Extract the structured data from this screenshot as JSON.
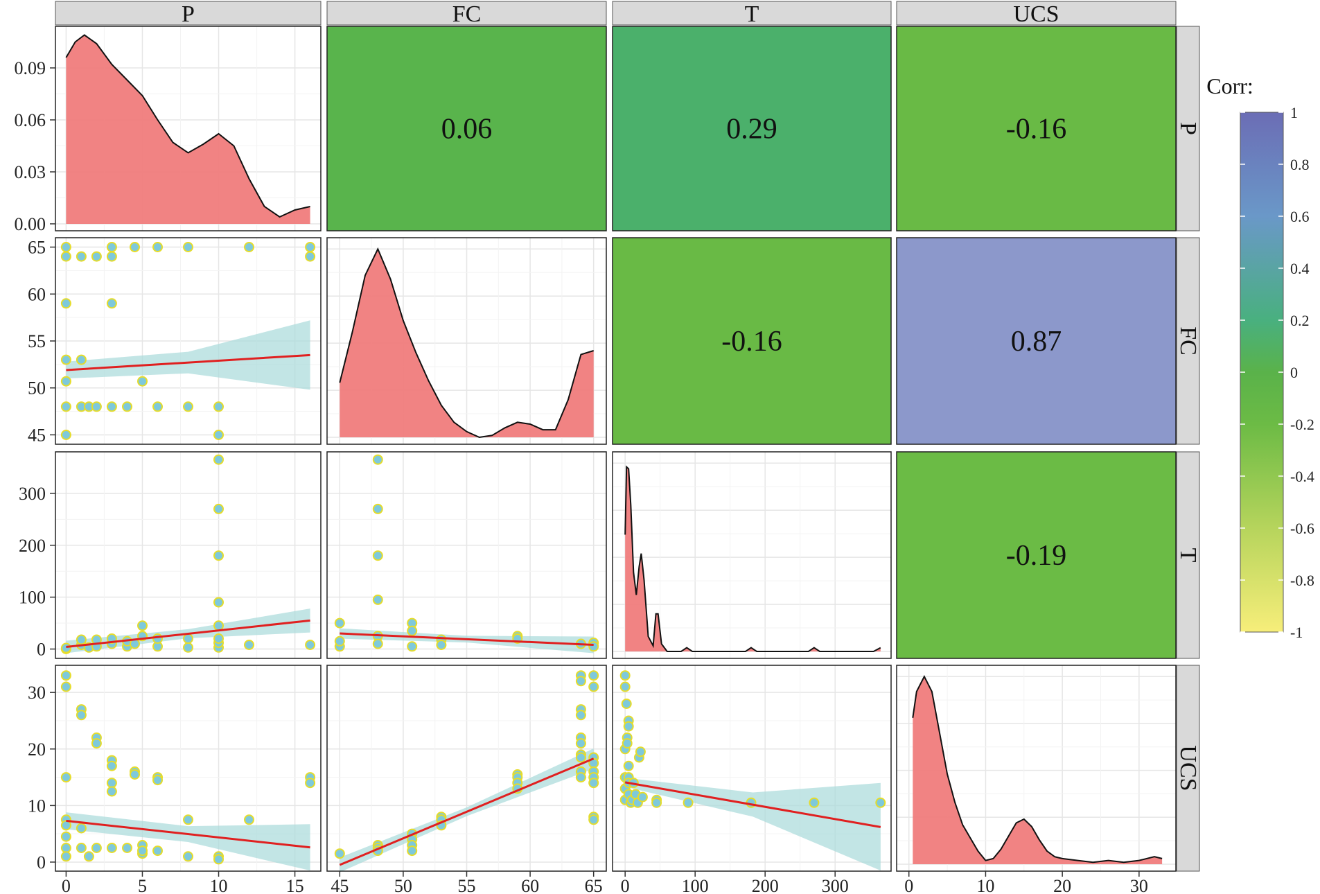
{
  "chart_data": {
    "type": "pairs",
    "variables": [
      "P",
      "FC",
      "T",
      "UCS"
    ],
    "strip_labels": {
      "top": [
        "P",
        "FC",
        "T",
        "UCS"
      ],
      "right": [
        "P",
        "FC",
        "T",
        "UCS"
      ]
    },
    "correlations": {
      "P_FC": "0.06",
      "P_T": "0.29",
      "P_UCS": "-0.16",
      "FC_T": "-0.16",
      "FC_UCS": "0.87",
      "T_UCS": "-0.19"
    },
    "legend": {
      "title": "Corr:",
      "ticks": [
        "1",
        "0.8",
        "0.6",
        "0.4",
        "0.2",
        "0",
        "-0.2",
        "-0.4",
        "-0.6",
        "-0.8",
        "-1"
      ]
    },
    "axes": {
      "P": {
        "range": [
          -0.7,
          16.7
        ],
        "ticks": [
          0,
          5,
          10,
          15
        ],
        "labels": [
          "0",
          "5",
          "10",
          "15"
        ]
      },
      "FC": {
        "range": [
          44.0,
          66.0
        ],
        "ticks": [
          45,
          50,
          55,
          60,
          65
        ],
        "labels": [
          "45",
          "50",
          "55",
          "60",
          "65"
        ]
      },
      "T": {
        "range": [
          -18,
          380
        ],
        "ticks": [
          0,
          100,
          200,
          300
        ],
        "labels": [
          "0",
          "100",
          "200",
          "300"
        ]
      },
      "UCS": {
        "range": [
          -1.6,
          34.8
        ],
        "ticks": [
          0,
          10,
          20,
          30
        ],
        "labels": [
          "0",
          "10",
          "20",
          "30"
        ]
      },
      "P_density": {
        "range": [
          -0.004,
          0.114
        ],
        "ticks": [
          0.0,
          0.03,
          0.06,
          0.09
        ],
        "labels": [
          "0.00",
          "0.03",
          "0.06",
          "0.09"
        ]
      }
    },
    "densities": {
      "P": [
        [
          0,
          0.096
        ],
        [
          0.6,
          0.105
        ],
        [
          1.2,
          0.109
        ],
        [
          2,
          0.104
        ],
        [
          3,
          0.092
        ],
        [
          4,
          0.083
        ],
        [
          5,
          0.074
        ],
        [
          6,
          0.06
        ],
        [
          7,
          0.047
        ],
        [
          8,
          0.041
        ],
        [
          9,
          0.046
        ],
        [
          10,
          0.052
        ],
        [
          11,
          0.045
        ],
        [
          12,
          0.026
        ],
        [
          13,
          0.01
        ],
        [
          14,
          0.004
        ],
        [
          15,
          0.008
        ],
        [
          16,
          0.01
        ],
        [
          16,
          0
        ]
      ],
      "FC": [
        [
          45,
          0.29
        ],
        [
          46,
          0.56
        ],
        [
          47,
          0.86
        ],
        [
          48,
          1.0
        ],
        [
          49,
          0.84
        ],
        [
          50,
          0.62
        ],
        [
          51,
          0.45
        ],
        [
          52,
          0.3
        ],
        [
          53,
          0.17
        ],
        [
          54,
          0.08
        ],
        [
          55,
          0.03
        ],
        [
          56,
          0.0
        ],
        [
          57,
          0.01
        ],
        [
          58,
          0.05
        ],
        [
          59,
          0.08
        ],
        [
          60,
          0.07
        ],
        [
          61,
          0.04
        ],
        [
          62,
          0.04
        ],
        [
          63,
          0.2
        ],
        [
          64,
          0.44
        ],
        [
          65,
          0.46
        ],
        [
          65,
          0
        ]
      ],
      "T": [
        [
          0,
          0.62
        ],
        [
          2,
          0.98
        ],
        [
          5,
          0.97
        ],
        [
          8,
          0.78
        ],
        [
          12,
          0.42
        ],
        [
          16,
          0.3
        ],
        [
          20,
          0.45
        ],
        [
          23,
          0.52
        ],
        [
          27,
          0.38
        ],
        [
          33,
          0.08
        ],
        [
          40,
          0.03
        ],
        [
          44,
          0.2
        ],
        [
          47,
          0.2
        ],
        [
          52,
          0.04
        ],
        [
          60,
          0.0
        ],
        [
          80,
          0.0
        ],
        [
          88,
          0.02
        ],
        [
          96,
          0.0
        ],
        [
          172,
          0.0
        ],
        [
          180,
          0.02
        ],
        [
          188,
          0.0
        ],
        [
          262,
          0.0
        ],
        [
          270,
          0.02
        ],
        [
          278,
          0.0
        ],
        [
          355,
          0.0
        ],
        [
          365,
          0.02
        ],
        [
          365,
          0
        ]
      ],
      "UCS": [
        [
          0.5,
          0.78
        ],
        [
          1,
          0.92
        ],
        [
          2,
          1.0
        ],
        [
          3,
          0.92
        ],
        [
          4,
          0.7
        ],
        [
          5,
          0.48
        ],
        [
          6,
          0.33
        ],
        [
          7,
          0.21
        ],
        [
          8,
          0.14
        ],
        [
          9,
          0.07
        ],
        [
          10,
          0.02
        ],
        [
          11,
          0.03
        ],
        [
          12,
          0.08
        ],
        [
          13,
          0.15
        ],
        [
          14,
          0.22
        ],
        [
          15,
          0.24
        ],
        [
          16,
          0.2
        ],
        [
          17,
          0.13
        ],
        [
          18,
          0.07
        ],
        [
          19,
          0.04
        ],
        [
          20,
          0.03
        ],
        [
          22,
          0.02
        ],
        [
          24,
          0.01
        ],
        [
          26,
          0.02
        ],
        [
          28,
          0.01
        ],
        [
          30,
          0.02
        ],
        [
          32,
          0.04
        ],
        [
          33,
          0.03
        ],
        [
          33,
          0
        ]
      ]
    },
    "scatter": {
      "P_FC": [
        [
          0,
          65
        ],
        [
          0,
          64
        ],
        [
          0,
          59
        ],
        [
          0,
          53
        ],
        [
          0,
          50.7
        ],
        [
          0,
          48
        ],
        [
          0,
          45
        ],
        [
          1,
          64
        ],
        [
          1,
          53
        ],
        [
          1,
          48
        ],
        [
          1.5,
          48
        ],
        [
          2,
          64
        ],
        [
          2,
          48
        ],
        [
          3,
          65
        ],
        [
          3,
          64
        ],
        [
          3,
          59
        ],
        [
          3,
          48
        ],
        [
          4,
          48
        ],
        [
          4.5,
          65
        ],
        [
          5,
          50.7
        ],
        [
          6,
          65
        ],
        [
          6,
          48
        ],
        [
          8,
          65
        ],
        [
          8,
          48
        ],
        [
          10,
          48
        ],
        [
          10,
          45
        ],
        [
          12,
          65
        ],
        [
          16,
          65
        ],
        [
          16,
          64
        ]
      ],
      "P_T": [
        [
          0,
          0
        ],
        [
          0,
          2
        ],
        [
          1,
          8
        ],
        [
          1,
          18
        ],
        [
          1.5,
          3
        ],
        [
          2,
          5
        ],
        [
          2,
          18
        ],
        [
          3,
          10
        ],
        [
          3,
          20
        ],
        [
          4,
          5
        ],
        [
          4,
          15
        ],
        [
          4.5,
          10
        ],
        [
          5,
          25
        ],
        [
          5,
          45
        ],
        [
          6,
          5
        ],
        [
          6,
          20
        ],
        [
          8,
          3
        ],
        [
          8,
          20
        ],
        [
          10,
          3
        ],
        [
          10,
          12
        ],
        [
          10,
          20
        ],
        [
          10,
          45
        ],
        [
          10,
          90
        ],
        [
          10,
          180
        ],
        [
          10,
          270
        ],
        [
          10,
          365
        ],
        [
          12,
          8
        ],
        [
          16,
          8
        ]
      ],
      "P_UCS": [
        [
          0,
          33
        ],
        [
          0,
          31
        ],
        [
          0,
          15
        ],
        [
          0,
          7.5
        ],
        [
          0,
          6.5
        ],
        [
          0,
          4.5
        ],
        [
          0,
          2.5
        ],
        [
          0,
          1
        ],
        [
          1,
          27
        ],
        [
          1,
          26
        ],
        [
          1,
          6
        ],
        [
          1,
          2.5
        ],
        [
          1.5,
          1
        ],
        [
          2,
          22
        ],
        [
          2,
          21
        ],
        [
          2,
          2.5
        ],
        [
          3,
          18
        ],
        [
          3,
          17
        ],
        [
          3,
          14
        ],
        [
          3,
          12.5
        ],
        [
          3,
          2.5
        ],
        [
          4,
          2.5
        ],
        [
          4.5,
          16
        ],
        [
          4.5,
          15.5
        ],
        [
          5,
          3
        ],
        [
          5,
          1.5
        ],
        [
          5,
          2
        ],
        [
          6,
          15
        ],
        [
          6,
          14.5
        ],
        [
          6,
          2
        ],
        [
          8,
          7.5
        ],
        [
          8,
          1
        ],
        [
          10,
          1
        ],
        [
          10,
          0.5
        ],
        [
          12,
          7.5
        ],
        [
          16,
          15
        ],
        [
          16,
          14
        ]
      ],
      "FC_T": [
        [
          45,
          50
        ],
        [
          45,
          5
        ],
        [
          45,
          15
        ],
        [
          48,
          365
        ],
        [
          48,
          270
        ],
        [
          48,
          180
        ],
        [
          48,
          95
        ],
        [
          48,
          25
        ],
        [
          48,
          10
        ],
        [
          50.7,
          50
        ],
        [
          50.7,
          35
        ],
        [
          50.7,
          5
        ],
        [
          53,
          18
        ],
        [
          53,
          8
        ],
        [
          59,
          25
        ],
        [
          59,
          20
        ],
        [
          64,
          10
        ],
        [
          65,
          12
        ],
        [
          65,
          5
        ]
      ],
      "FC_UCS": [
        [
          45,
          1.5
        ],
        [
          48,
          3
        ],
        [
          48,
          2.5
        ],
        [
          48,
          2
        ],
        [
          50.7,
          5
        ],
        [
          50.7,
          4
        ],
        [
          50.7,
          3
        ],
        [
          50.7,
          2
        ],
        [
          53,
          8
        ],
        [
          53,
          7.5
        ],
        [
          53,
          6.5
        ],
        [
          59,
          15.5
        ],
        [
          59,
          15
        ],
        [
          59,
          14
        ],
        [
          59,
          13
        ],
        [
          64,
          33
        ],
        [
          64,
          32
        ],
        [
          64,
          27
        ],
        [
          64,
          26
        ],
        [
          64,
          22
        ],
        [
          64,
          21
        ],
        [
          64,
          19
        ],
        [
          64,
          18.5
        ],
        [
          64,
          16
        ],
        [
          64,
          15
        ],
        [
          65,
          33
        ],
        [
          65,
          31
        ],
        [
          65,
          18.5
        ],
        [
          65,
          17.5
        ],
        [
          65,
          16
        ],
        [
          65,
          15
        ],
        [
          65,
          14
        ],
        [
          65,
          8
        ],
        [
          65,
          7.5
        ]
      ],
      "T_UCS": [
        [
          0,
          33
        ],
        [
          0,
          31
        ],
        [
          0,
          20
        ],
        [
          0,
          15
        ],
        [
          0,
          13
        ],
        [
          0,
          11
        ],
        [
          2,
          28
        ],
        [
          3,
          22
        ],
        [
          3,
          21
        ],
        [
          5,
          25
        ],
        [
          5,
          24
        ],
        [
          5,
          17
        ],
        [
          5,
          15
        ],
        [
          5,
          14
        ],
        [
          5,
          12
        ],
        [
          8,
          10.5
        ],
        [
          10,
          11
        ],
        [
          12,
          14
        ],
        [
          15,
          12
        ],
        [
          18,
          10.5
        ],
        [
          20,
          18.5
        ],
        [
          22,
          19.5
        ],
        [
          25,
          11.5
        ],
        [
          45,
          11
        ],
        [
          45,
          10.5
        ],
        [
          90,
          10.5
        ],
        [
          180,
          10.5
        ],
        [
          270,
          10.5
        ],
        [
          365,
          10.5
        ]
      ]
    },
    "regressions": {
      "P_FC": {
        "x": [
          0,
          16
        ],
        "y": [
          51.9,
          53.5
        ],
        "band_lo": [
          51.0,
          49.8
        ],
        "band_hi": [
          52.8,
          57.2
        ]
      },
      "P_T": {
        "x": [
          0,
          16
        ],
        "y": [
          4,
          55
        ],
        "band_lo": [
          -8,
          32
        ],
        "band_hi": [
          16,
          78
        ]
      },
      "P_UCS": {
        "x": [
          0,
          16
        ],
        "y": [
          7.3,
          2.6
        ],
        "band_lo": [
          5.8,
          -1.5
        ],
        "band_hi": [
          8.8,
          6.7
        ]
      },
      "FC_T": {
        "x": [
          45,
          65
        ],
        "y": [
          30,
          8
        ],
        "band_lo": [
          20,
          -8
        ],
        "band_hi": [
          40,
          24
        ]
      },
      "FC_UCS": {
        "x": [
          45,
          65
        ],
        "y": [
          -0.5,
          18.3
        ],
        "band_lo": [
          -1.8,
          16.5
        ],
        "band_hi": [
          0.8,
          20.1
        ]
      },
      "T_UCS": {
        "x": [
          0,
          365
        ],
        "y": [
          14.1,
          6.2
        ],
        "band_lo": [
          13.3,
          -1.5
        ],
        "band_hi": [
          14.9,
          14.0
        ]
      }
    }
  }
}
